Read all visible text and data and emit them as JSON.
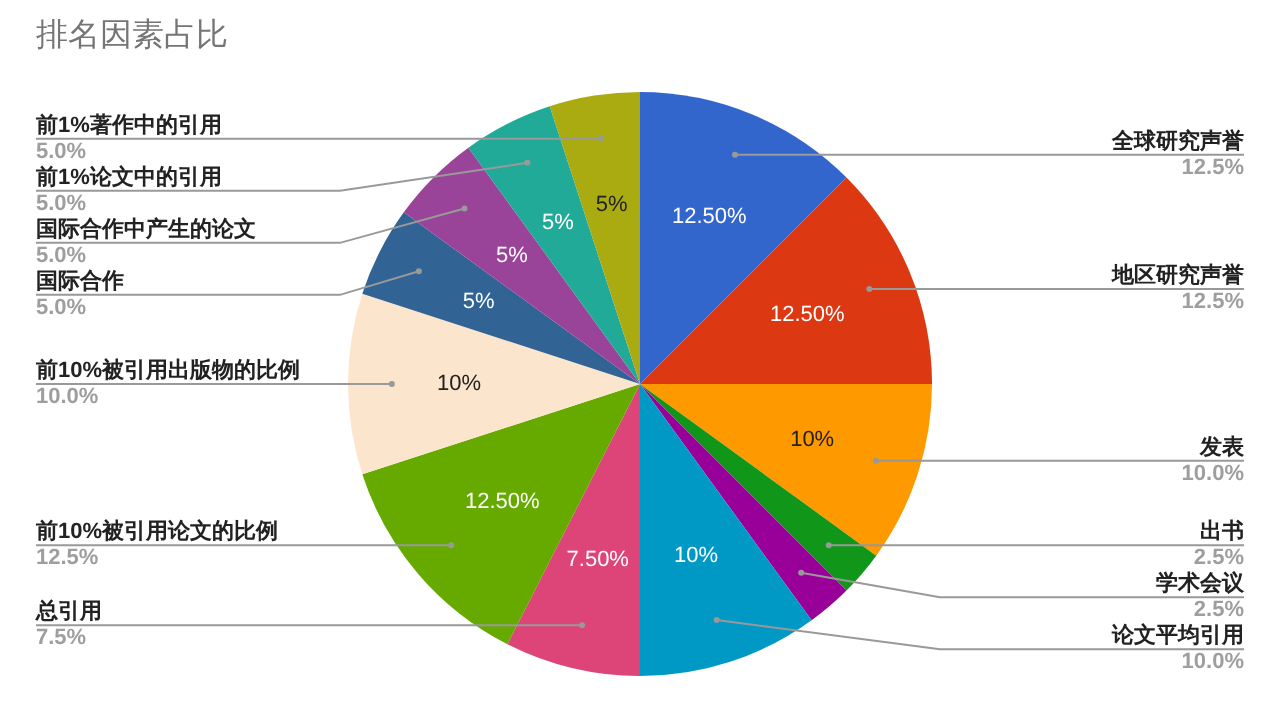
{
  "chart_data": {
    "type": "pie",
    "title": "排名因素占比",
    "categories": [
      "全球研究声誉",
      "地区研究声誉",
      "发表",
      "出书",
      "学术会议",
      "论文平均引用",
      "总引用",
      "前10%被引用论文的比例",
      "前10%被引用出版物的比例",
      "国际合作",
      "国际合作中产生的论文",
      "前1%论文中的引用",
      "前1%著作中的引用"
    ],
    "values": [
      12.5,
      12.5,
      10,
      2.5,
      2.5,
      10,
      7.5,
      12.5,
      10,
      5,
      5,
      5,
      5
    ],
    "colors": [
      "#3366cc",
      "#dc3912",
      "#ff9900",
      "#109618",
      "#990099",
      "#0099c6",
      "#dd4477",
      "#66aa00",
      "#fce5cd",
      "#316395",
      "#994499",
      "#22aa99",
      "#aaaa11"
    ],
    "value_labels": [
      "12.50%",
      "12.50%",
      "10%",
      null,
      null,
      "10%",
      "7.50%",
      "12.50%",
      "10%",
      "5%",
      "5%",
      "5%",
      "5%"
    ],
    "annotations": [
      "12.5%",
      "12.5%",
      "10.0%",
      "2.5%",
      "2.5%",
      "10.0%",
      "7.5%",
      "12.5%",
      "10.0%",
      "5.0%",
      "5.0%",
      "5.0%",
      "5.0%"
    ],
    "legend": false
  }
}
